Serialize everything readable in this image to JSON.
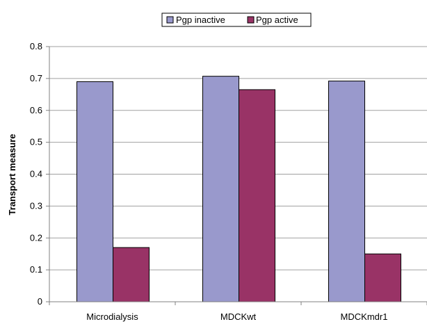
{
  "chart_data": {
    "type": "bar",
    "categories": [
      "Microdialysis",
      "MDCKwt",
      "MDCKmdr1"
    ],
    "series": [
      {
        "name": "Pgp inactive",
        "color": "#9999cc",
        "values": [
          0.69,
          0.707,
          0.692
        ]
      },
      {
        "name": "Pgp active",
        "color": "#993366",
        "values": [
          0.17,
          0.665,
          0.15
        ]
      }
    ],
    "ylabel": "Transport measure",
    "xlabel": "",
    "ylim": [
      0,
      0.8
    ],
    "yticks": [
      "0",
      "0.1",
      "0.2",
      "0.3",
      "0.4",
      "0.5",
      "0.6",
      "0.7",
      "0.8"
    ],
    "grid": true,
    "legend_position": "top-center"
  }
}
